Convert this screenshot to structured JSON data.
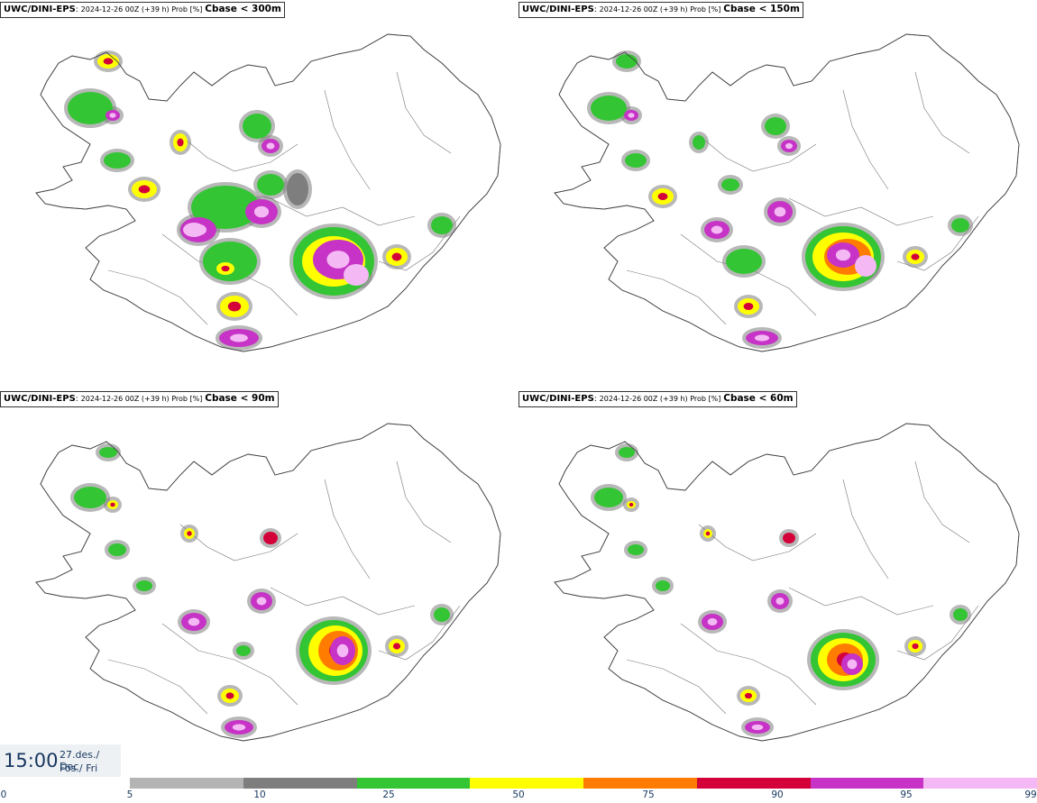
{
  "panels": [
    {
      "model": "UWC/DINI-EPS",
      "run": "2024-12-26 00Z (+39 h) Prob [%]",
      "criterion": "Cbase < 300m"
    },
    {
      "model": "UWC/DINI-EPS",
      "run": "2024-12-26 00Z (+39 h) Prob [%]",
      "criterion": "Cbase < 150m"
    },
    {
      "model": "UWC/DINI-EPS",
      "run": "2024-12-26 00Z (+39 h) Prob [%]",
      "criterion": "Cbase < 90m"
    },
    {
      "model": "UWC/DINI-EPS",
      "run": "2024-12-26 00Z (+39 h) Prob [%]",
      "criterion": "Cbase < 60m"
    }
  ],
  "valid_time": {
    "time": "15:00",
    "date": "27.des./ Dec",
    "day": "Fös./ Fri"
  },
  "legend": {
    "ticks": [
      "0",
      "5",
      "10",
      "25",
      "50",
      "75",
      "90",
      "95",
      "99"
    ],
    "colors": [
      "#b4b4b4",
      "#7e7e7e",
      "#33c533",
      "#ffff00",
      "#ff7c00",
      "#d4003a",
      "#c633c6",
      "#f4b8f4"
    ]
  }
}
